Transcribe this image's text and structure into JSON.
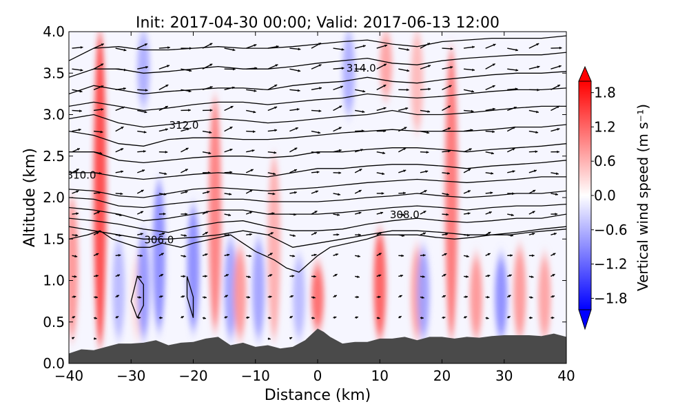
{
  "chart_data": {
    "type": "heatmap",
    "title": "Init: 2017-04-30 00:00; Valid: 2017-06-13 12:00",
    "xlabel": "Distance (km)",
    "ylabel": "Altitude (km)",
    "xlim": [
      -40,
      40
    ],
    "ylim": [
      0.0,
      4.0
    ],
    "x_ticks": [
      -40,
      -30,
      -20,
      -10,
      0,
      10,
      20,
      30,
      40
    ],
    "x_tick_labels": [
      "−40",
      "−30",
      "−20",
      "−10",
      "0",
      "10",
      "20",
      "30",
      "40"
    ],
    "y_ticks": [
      0.0,
      0.5,
      1.0,
      1.5,
      2.0,
      2.5,
      3.0,
      3.5,
      4.0
    ],
    "y_tick_labels": [
      "0.0",
      "0.5",
      "1.0",
      "1.5",
      "2.0",
      "2.5",
      "3.0",
      "3.5",
      "4.0"
    ],
    "colorbar": {
      "label": "Vertical wind speed (m s⁻¹)",
      "min": -2.0,
      "max": 2.0,
      "levels": 20,
      "extend": "both",
      "ticks": [
        1.8,
        1.2,
        0.6,
        0.0,
        -0.6,
        -1.2,
        -1.8
      ],
      "tick_labels": [
        "1.8",
        "1.2",
        "0.6",
        "0.0",
        "−0.6",
        "−1.2",
        "−1.8"
      ],
      "colormap": "bwr"
    },
    "colors": {
      "terrain": "#4a4a4a",
      "contour": "#000000",
      "positive": "#ff0000",
      "negative": "#0000ff",
      "neutral": "#ffffff"
    },
    "terrain": {
      "x": [
        -40,
        -38,
        -36,
        -34,
        -32,
        -30,
        -28,
        -26,
        -24,
        -22,
        -20,
        -18,
        -16,
        -14,
        -12,
        -10,
        -8,
        -6,
        -4,
        -2,
        -1,
        0,
        1,
        2,
        4,
        6,
        8,
        10,
        12,
        14,
        16,
        18,
        20,
        22,
        24,
        26,
        28,
        30,
        32,
        34,
        36,
        38,
        40
      ],
      "z": [
        0.12,
        0.17,
        0.16,
        0.2,
        0.24,
        0.24,
        0.25,
        0.28,
        0.22,
        0.25,
        0.26,
        0.3,
        0.32,
        0.22,
        0.25,
        0.2,
        0.22,
        0.18,
        0.2,
        0.28,
        0.35,
        0.42,
        0.38,
        0.32,
        0.24,
        0.26,
        0.26,
        0.3,
        0.3,
        0.32,
        0.28,
        0.32,
        0.32,
        0.3,
        0.32,
        0.31,
        0.33,
        0.34,
        0.34,
        0.34,
        0.33,
        0.36,
        0.32
      ]
    },
    "vertical_wind": {
      "description": "Alternating updraft/downdraft columns",
      "columns": [
        {
          "x": -39.5,
          "w": 0.9,
          "zmin": 0.3,
          "zmax": 2.0
        },
        {
          "x": -35,
          "w": 1.6,
          "zmin": 0.2,
          "zmax": 4.0
        },
        {
          "x": -32,
          "w": -0.6,
          "zmin": 0.3,
          "zmax": 1.5
        },
        {
          "x": -29,
          "w": 0.3,
          "zmin": 0.3,
          "zmax": 1.3
        },
        {
          "x": -28,
          "w": -0.9,
          "zmin": 0.3,
          "zmax": 1.6
        },
        {
          "x": -25.5,
          "w": -1.0,
          "zmin": 0.4,
          "zmax": 2.2
        },
        {
          "x": -20,
          "w": -1.0,
          "zmin": 0.4,
          "zmax": 1.9
        },
        {
          "x": -16.5,
          "w": 1.1,
          "zmin": 0.4,
          "zmax": 3.2
        },
        {
          "x": -14,
          "w": -0.8,
          "zmin": 0.3,
          "zmax": 1.5
        },
        {
          "x": -12.5,
          "w": 0.9,
          "zmin": 0.3,
          "zmax": 1.4
        },
        {
          "x": -9.5,
          "w": -0.8,
          "zmin": 0.3,
          "zmax": 1.5
        },
        {
          "x": -7,
          "w": 0.7,
          "zmin": 0.3,
          "zmax": 2.5
        },
        {
          "x": -3,
          "w": -0.6,
          "zmin": 0.3,
          "zmax": 1.3
        },
        {
          "x": 0,
          "w": 1.3,
          "zmin": 0.4,
          "zmax": 1.2
        },
        {
          "x": 10,
          "w": 1.4,
          "zmin": 0.3,
          "zmax": 1.6
        },
        {
          "x": 16,
          "w": 0.8,
          "zmin": 0.3,
          "zmax": 1.4
        },
        {
          "x": 17,
          "w": -0.8,
          "zmin": 0.3,
          "zmax": 1.4
        },
        {
          "x": 21.5,
          "w": 1.2,
          "zmin": 0.3,
          "zmax": 3.8
        },
        {
          "x": 25.5,
          "w": 0.9,
          "zmin": 0.3,
          "zmax": 1.3
        },
        {
          "x": 29.5,
          "w": -1.0,
          "zmin": 0.3,
          "zmax": 1.3
        },
        {
          "x": 32.5,
          "w": 0.9,
          "zmin": 0.3,
          "zmax": 1.4
        },
        {
          "x": 36.5,
          "w": 0.8,
          "zmin": 0.3,
          "zmax": 1.3
        },
        {
          "x": 11,
          "w": 0.8,
          "zmin": 3.2,
          "zmax": 4.0
        },
        {
          "x": 16,
          "w": 0.6,
          "zmin": 2.8,
          "zmax": 4.0
        },
        {
          "x": 5,
          "w": -0.7,
          "zmin": 3.0,
          "zmax": 4.0
        },
        {
          "x": -28,
          "w": -0.7,
          "zmin": 3.1,
          "zmax": 4.0
        }
      ]
    },
    "potential_temperature_contours": {
      "labels": [
        {
          "value": "306.0",
          "x": -25.5,
          "z": 1.45
        },
        {
          "value": "308.0",
          "x": 14,
          "z": 1.75
        },
        {
          "value": "310.0",
          "x": -38,
          "z": 2.23
        },
        {
          "value": "312.0",
          "x": -21.5,
          "z": 2.83
        },
        {
          "value": "314.0",
          "x": 7,
          "z": 3.52
        }
      ],
      "lines": [
        {
          "x": [
            -40,
            -36,
            -32,
            -28,
            -24,
            -20,
            -16,
            -12,
            -8,
            -4,
            0,
            4,
            8,
            12,
            16,
            20,
            24,
            28,
            32,
            36,
            40
          ],
          "z": [
            1.65,
            1.6,
            1.55,
            1.5,
            1.5,
            1.52,
            1.55,
            1.6,
            1.55,
            1.4,
            1.45,
            1.5,
            1.55,
            1.6,
            1.6,
            1.58,
            1.55,
            1.55,
            1.58,
            1.62,
            1.65
          ]
        },
        {
          "x": [
            -40,
            -36,
            -32,
            -28,
            -24,
            -20,
            -16,
            -12,
            -8,
            -4,
            0,
            4,
            8,
            12,
            16,
            20,
            24,
            28,
            32,
            36,
            40
          ],
          "z": [
            1.75,
            1.72,
            1.68,
            1.62,
            1.58,
            1.65,
            1.7,
            1.72,
            1.65,
            1.6,
            1.6,
            1.62,
            1.68,
            1.72,
            1.75,
            1.72,
            1.7,
            1.72,
            1.75,
            1.75,
            1.8
          ]
        },
        {
          "x": [
            -40,
            -36,
            -32,
            -28,
            -24,
            -20,
            -16,
            -12,
            -8,
            -4,
            0,
            4,
            8,
            12,
            16,
            20,
            24,
            28,
            32,
            36,
            40
          ],
          "z": [
            1.88,
            1.85,
            1.8,
            1.72,
            1.75,
            1.8,
            1.85,
            1.85,
            1.8,
            1.8,
            1.8,
            1.82,
            1.85,
            1.88,
            1.9,
            1.88,
            1.85,
            1.88,
            1.9,
            1.9,
            1.92
          ]
        },
        {
          "x": [
            -40,
            -36,
            -32,
            -28,
            -24,
            -20,
            -16,
            -12,
            -8,
            -4,
            0,
            4,
            8,
            12,
            16,
            20,
            24,
            28,
            32,
            36,
            40
          ],
          "z": [
            2.0,
            1.98,
            1.9,
            1.88,
            1.92,
            1.95,
            1.98,
            1.98,
            1.95,
            1.95,
            1.95,
            1.97,
            2.0,
            2.02,
            2.05,
            2.02,
            2.0,
            2.02,
            2.05,
            2.05,
            2.08
          ]
        },
        {
          "x": [
            -40,
            -36,
            -32,
            -28,
            -24,
            -20,
            -16,
            -12,
            -8,
            -4,
            0,
            4,
            8,
            12,
            16,
            20,
            24,
            28,
            32,
            36,
            40
          ],
          "z": [
            2.1,
            2.08,
            2.02,
            2.0,
            2.05,
            2.1,
            2.12,
            2.1,
            2.08,
            2.1,
            2.12,
            2.15,
            2.18,
            2.2,
            2.22,
            2.2,
            2.18,
            2.2,
            2.22,
            2.25,
            2.25
          ]
        },
        {
          "x": [
            -40,
            -36,
            -32,
            -28,
            -24,
            -20,
            -16,
            -12,
            -8,
            -4,
            0,
            4,
            8,
            12,
            16,
            20,
            24,
            28,
            32,
            36,
            40
          ],
          "z": [
            2.3,
            2.3,
            2.25,
            2.22,
            2.25,
            2.28,
            2.3,
            2.28,
            2.25,
            2.3,
            2.35,
            2.35,
            2.38,
            2.4,
            2.4,
            2.38,
            2.35,
            2.38,
            2.4,
            2.42,
            2.45
          ]
        },
        {
          "x": [
            -40,
            -36,
            -32,
            -28,
            -24,
            -20,
            -16,
            -12,
            -8,
            -4,
            0,
            4,
            8,
            12,
            16,
            20,
            24,
            28,
            32,
            36,
            40
          ],
          "z": [
            2.55,
            2.55,
            2.45,
            2.42,
            2.45,
            2.48,
            2.5,
            2.5,
            2.48,
            2.5,
            2.55,
            2.55,
            2.58,
            2.6,
            2.6,
            2.58,
            2.55,
            2.58,
            2.6,
            2.62,
            2.65
          ]
        },
        {
          "x": [
            -40,
            -36,
            -32,
            -28,
            -24,
            -20,
            -16,
            -12,
            -8,
            -4,
            0,
            4,
            8,
            12,
            16,
            20,
            24,
            28,
            32,
            36,
            40
          ],
          "z": [
            2.8,
            2.75,
            2.65,
            2.62,
            2.7,
            2.72,
            2.72,
            2.7,
            2.7,
            2.72,
            2.75,
            2.78,
            2.8,
            2.82,
            2.8,
            2.8,
            2.8,
            2.82,
            2.85,
            2.85,
            2.88
          ]
        },
        {
          "x": [
            -40,
            -36,
            -32,
            -28,
            -24,
            -20,
            -16,
            -12,
            -8,
            -4,
            0,
            4,
            8,
            12,
            16,
            20,
            24,
            28,
            32,
            36,
            40
          ],
          "z": [
            2.95,
            3.0,
            2.9,
            2.85,
            2.88,
            2.92,
            2.95,
            2.93,
            2.9,
            2.92,
            2.95,
            2.98,
            3.0,
            3.05,
            3.0,
            3.0,
            3.02,
            3.05,
            3.08,
            3.1,
            3.1
          ]
        },
        {
          "x": [
            -40,
            -36,
            -32,
            -28,
            -24,
            -20,
            -16,
            -12,
            -8,
            -4,
            0,
            4,
            8,
            12,
            16,
            20,
            24,
            28,
            32,
            36,
            40
          ],
          "z": [
            3.1,
            3.15,
            3.1,
            3.05,
            3.08,
            3.12,
            3.15,
            3.15,
            3.12,
            3.15,
            3.18,
            3.2,
            3.25,
            3.22,
            3.2,
            3.22,
            3.25,
            3.28,
            3.3,
            3.3,
            3.32
          ]
        },
        {
          "x": [
            -40,
            -36,
            -32,
            -28,
            -24,
            -20,
            -16,
            -12,
            -8,
            -4,
            0,
            4,
            8,
            12,
            16,
            20,
            24,
            28,
            32,
            36,
            40
          ],
          "z": [
            3.25,
            3.35,
            3.3,
            3.25,
            3.28,
            3.3,
            3.32,
            3.32,
            3.3,
            3.35,
            3.38,
            3.4,
            3.45,
            3.4,
            3.38,
            3.42,
            3.45,
            3.48,
            3.5,
            3.5,
            3.52
          ]
        },
        {
          "x": [
            -40,
            -36,
            -32,
            -28,
            -24,
            -20,
            -16,
            -12,
            -8,
            -4,
            0,
            4,
            8,
            12,
            16,
            20,
            24,
            28,
            32,
            36,
            40
          ],
          "z": [
            3.45,
            3.55,
            3.55,
            3.5,
            3.52,
            3.55,
            3.58,
            3.55,
            3.55,
            3.58,
            3.62,
            3.65,
            3.68,
            3.62,
            3.6,
            3.65,
            3.68,
            3.7,
            3.72,
            3.72,
            3.75
          ]
        },
        {
          "x": [
            -40,
            -36,
            -32,
            -28,
            -24,
            -20,
            -16,
            -12,
            -8,
            -4,
            0,
            4,
            8,
            12,
            16,
            20,
            24,
            28,
            32,
            36,
            40
          ],
          "z": [
            3.65,
            3.8,
            3.82,
            3.78,
            3.78,
            3.8,
            3.82,
            3.8,
            3.8,
            3.82,
            3.85,
            3.88,
            3.9,
            3.85,
            3.82,
            3.88,
            3.9,
            3.92,
            3.92,
            3.92,
            3.95
          ]
        },
        {
          "x": [
            -40,
            -37,
            -35,
            -33,
            -31,
            -29,
            -27,
            -25,
            -22,
            -20,
            -17,
            -14,
            -12,
            -10,
            -7,
            -5,
            -3,
            0,
            2,
            5,
            8,
            10,
            13,
            16,
            19,
            22,
            25,
            28,
            31,
            34,
            37,
            40
          ],
          "z": [
            1.5,
            1.55,
            1.6,
            1.5,
            1.45,
            1.4,
            1.4,
            1.45,
            1.4,
            1.45,
            1.5,
            1.55,
            1.45,
            1.35,
            1.25,
            1.15,
            1.1,
            1.3,
            1.4,
            1.45,
            1.5,
            1.55,
            1.55,
            1.55,
            1.52,
            1.5,
            1.52,
            1.55,
            1.55,
            1.58,
            1.6,
            1.62
          ]
        },
        {
          "x": [
            -29,
            -28,
            -28,
            -29,
            -30,
            -29
          ],
          "z": [
            0.55,
            0.7,
            0.95,
            1.05,
            0.75,
            0.55
          ]
        },
        {
          "x": [
            -20,
            -20,
            -21,
            -21,
            -20
          ],
          "z": [
            0.55,
            0.8,
            1.05,
            0.8,
            0.55
          ]
        }
      ]
    },
    "wind_vectors": {
      "x_spacing_km": 3.5,
      "z_spacing_km": 0.25,
      "description": "Horizontal winds mostly eastward; stronger aloft, weak near surface"
    }
  }
}
